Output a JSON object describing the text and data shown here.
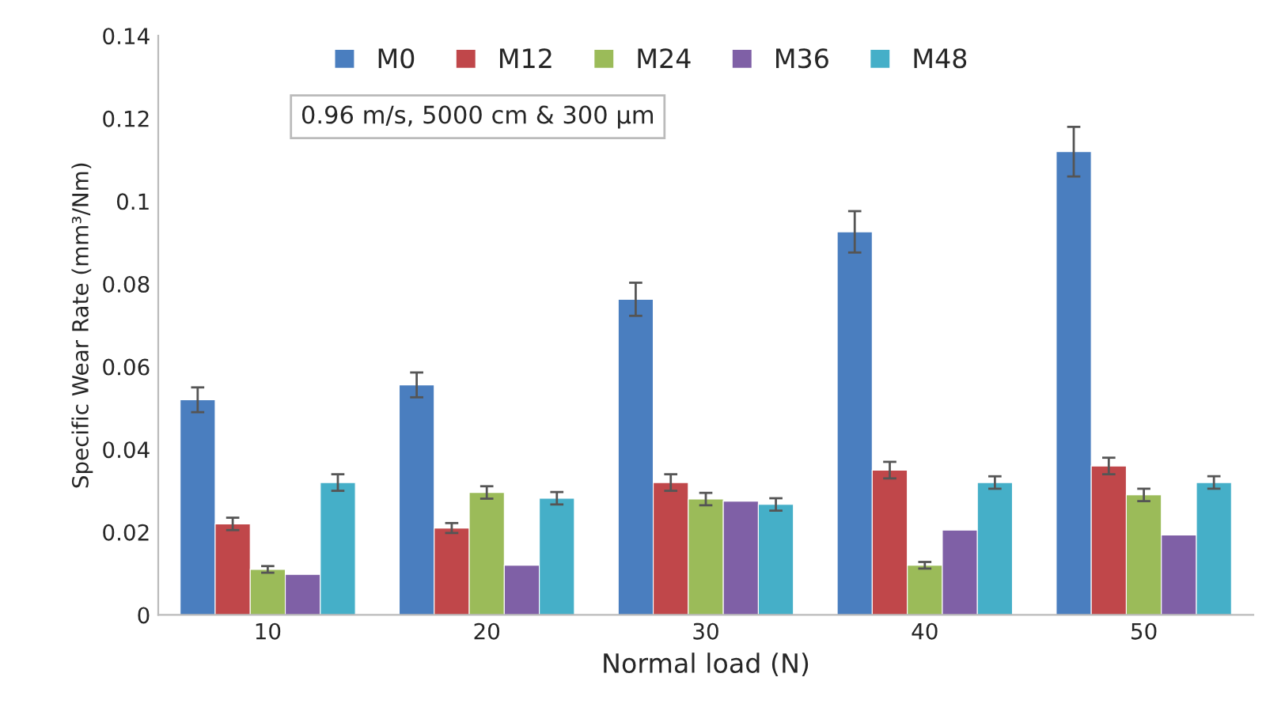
{
  "chart_data": {
    "type": "bar",
    "xlabel": "Normal load (N)",
    "ylabel": "Specific Wear Rate (mm³/Nm)",
    "categories": [
      "10",
      "20",
      "30",
      "40",
      "50"
    ],
    "series": [
      {
        "name": "M0",
        "color": "#4a7ebf",
        "values": [
          0.052,
          0.0556,
          0.0763,
          0.0926,
          0.112
        ],
        "errors": [
          0.003,
          0.003,
          0.004,
          0.005,
          0.006
        ]
      },
      {
        "name": "M12",
        "color": "#c0474a",
        "values": [
          0.022,
          0.021,
          0.032,
          0.035,
          0.036
        ],
        "errors": [
          0.0015,
          0.0012,
          0.002,
          0.002,
          0.002
        ]
      },
      {
        "name": "M24",
        "color": "#9bbb59",
        "values": [
          0.011,
          0.0296,
          0.028,
          0.012,
          0.029
        ],
        "errors": [
          0.0008,
          0.0015,
          0.0015,
          0.0008,
          0.0015
        ]
      },
      {
        "name": "M36",
        "color": "#7f60a6",
        "values": [
          0.0098,
          0.012,
          0.0275,
          0.0205,
          0.0193
        ]
      },
      {
        "name": "M48",
        "color": "#45afc8",
        "values": [
          0.032,
          0.0282,
          0.0267,
          0.032,
          0.032
        ],
        "errors": [
          0.002,
          0.0015,
          0.0015,
          0.0015,
          0.0015
        ]
      }
    ],
    "annotations": [
      "0.96 m/s, 5000 cm & 300 µm"
    ],
    "ylim": [
      0,
      0.14
    ],
    "yticks": [
      0,
      0.02,
      0.04,
      0.06,
      0.08,
      0.1,
      0.12,
      0.14
    ],
    "grid": false,
    "legend": "top"
  }
}
